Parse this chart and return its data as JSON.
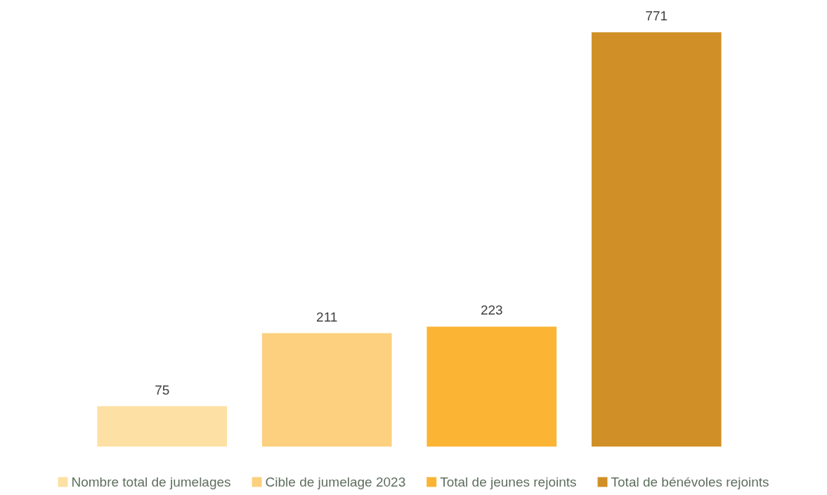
{
  "chart_data": {
    "type": "bar",
    "categories": [
      null
    ],
    "series": [
      {
        "name": "Nombre total de jumelages",
        "color": "#fde0a3",
        "values": [
          75
        ]
      },
      {
        "name": "Cible de jumelage 2023",
        "color": "#fcd07e",
        "values": [
          211
        ]
      },
      {
        "name": "Total de jeunes rejoints",
        "color": "#fbb434",
        "values": [
          223
        ]
      },
      {
        "name": "Total de bénévoles rejoints",
        "color": "#d19027",
        "values": [
          771
        ]
      }
    ],
    "data_labels": true,
    "legend": "bottom"
  }
}
